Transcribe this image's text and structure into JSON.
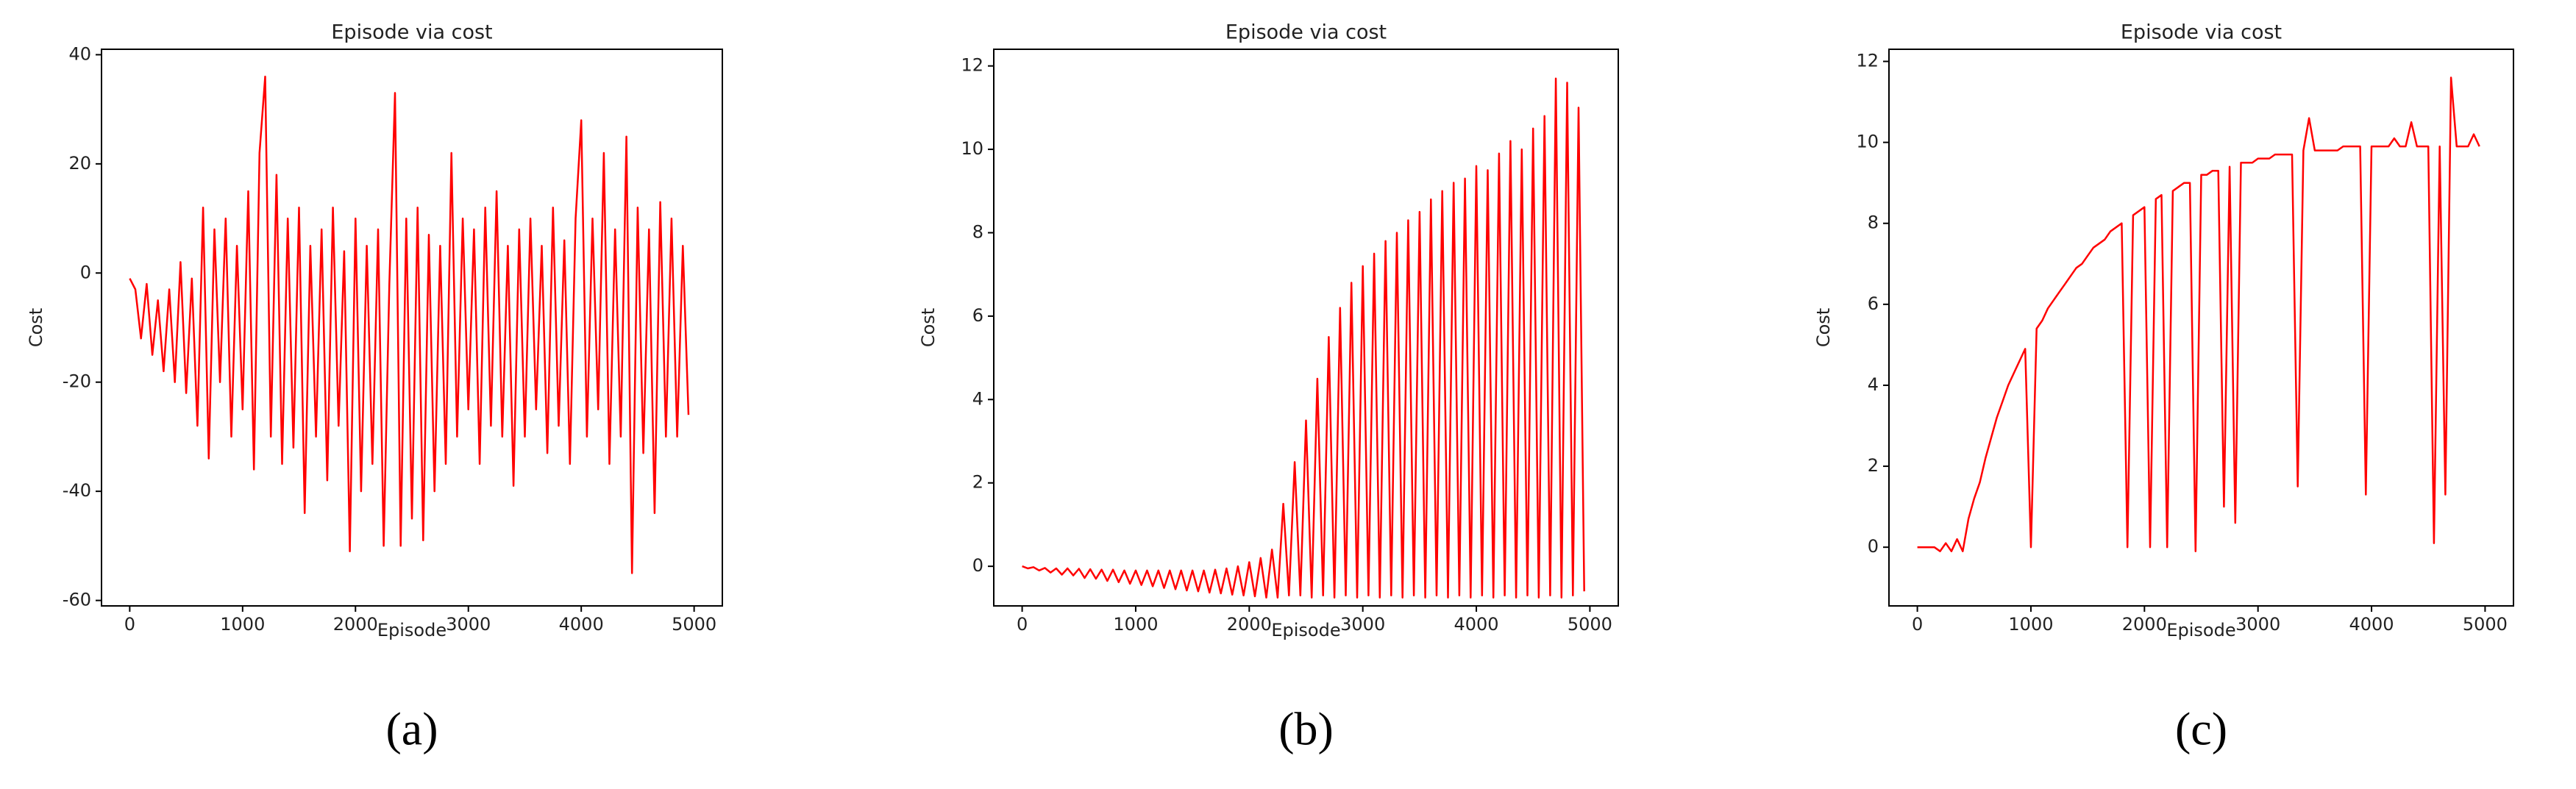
{
  "chart_data": [
    {
      "type": "line",
      "title": "Episode via cost",
      "xlabel": "Episode",
      "ylabel": "Cost",
      "panel_label": "(a)",
      "color": "#ff0000",
      "xlim": [
        -250,
        5250
      ],
      "ylim": [
        -61,
        41
      ],
      "xticks": [
        0,
        1000,
        2000,
        3000,
        4000,
        5000
      ],
      "yticks": [
        -60,
        -40,
        -20,
        0,
        20,
        40
      ],
      "x": [
        0,
        50,
        100,
        150,
        200,
        250,
        300,
        350,
        400,
        450,
        500,
        550,
        600,
        650,
        700,
        750,
        800,
        850,
        900,
        950,
        1000,
        1050,
        1100,
        1150,
        1200,
        1250,
        1300,
        1350,
        1400,
        1450,
        1500,
        1550,
        1600,
        1650,
        1700,
        1750,
        1800,
        1850,
        1900,
        1950,
        2000,
        2050,
        2100,
        2150,
        2200,
        2250,
        2300,
        2350,
        2400,
        2450,
        2500,
        2550,
        2600,
        2650,
        2700,
        2750,
        2800,
        2850,
        2900,
        2950,
        3000,
        3050,
        3100,
        3150,
        3200,
        3250,
        3300,
        3350,
        3400,
        3450,
        3500,
        3550,
        3600,
        3650,
        3700,
        3750,
        3800,
        3850,
        3900,
        3950,
        4000,
        4050,
        4100,
        4150,
        4200,
        4250,
        4300,
        4350,
        4400,
        4450,
        4500,
        4550,
        4600,
        4650,
        4700,
        4750,
        4800,
        4850,
        4900,
        4950
      ],
      "values": [
        -1,
        -3,
        -12,
        -2,
        -15,
        -5,
        -18,
        -3,
        -20,
        2,
        -22,
        -1,
        -28,
        12,
        -34,
        8,
        -20,
        10,
        -30,
        5,
        -25,
        15,
        -36,
        22,
        36,
        -30,
        18,
        -35,
        10,
        -32,
        12,
        -44,
        5,
        -30,
        8,
        -38,
        12,
        -28,
        4,
        -51,
        10,
        -40,
        5,
        -35,
        8,
        -50,
        -2,
        33,
        -50,
        10,
        -45,
        12,
        -49,
        7,
        -40,
        5,
        -35,
        22,
        -30,
        10,
        -25,
        8,
        -35,
        12,
        -28,
        15,
        -30,
        5,
        -39,
        8,
        -30,
        10,
        -25,
        5,
        -33,
        12,
        -28,
        6,
        -35,
        10,
        28,
        -30,
        10,
        -25,
        22,
        -35,
        8,
        -30,
        25,
        -55,
        12,
        -33,
        8,
        -44,
        13,
        -30,
        10,
        -30,
        5,
        -26
      ]
    },
    {
      "type": "line",
      "title": "Episode via cost",
      "xlabel": "Episode",
      "ylabel": "Cost",
      "panel_label": "(b)",
      "color": "#ff0000",
      "xlim": [
        -250,
        5250
      ],
      "ylim": [
        -0.95,
        12.4
      ],
      "xticks": [
        0,
        1000,
        2000,
        3000,
        4000,
        5000
      ],
      "yticks": [
        0,
        2,
        4,
        6,
        8,
        10,
        12
      ],
      "x": [
        0,
        50,
        100,
        150,
        200,
        250,
        300,
        350,
        400,
        450,
        500,
        550,
        600,
        650,
        700,
        750,
        800,
        850,
        900,
        950,
        1000,
        1050,
        1100,
        1150,
        1200,
        1250,
        1300,
        1350,
        1400,
        1450,
        1500,
        1550,
        1600,
        1650,
        1700,
        1750,
        1800,
        1850,
        1900,
        1950,
        2000,
        2050,
        2100,
        2150,
        2200,
        2250,
        2300,
        2350,
        2400,
        2450,
        2500,
        2550,
        2600,
        2650,
        2700,
        2750,
        2800,
        2850,
        2900,
        2950,
        3000,
        3050,
        3100,
        3150,
        3200,
        3250,
        3300,
        3350,
        3400,
        3450,
        3500,
        3550,
        3600,
        3650,
        3700,
        3750,
        3800,
        3850,
        3900,
        3950,
        4000,
        4050,
        4100,
        4150,
        4200,
        4250,
        4300,
        4350,
        4400,
        4450,
        4500,
        4550,
        4600,
        4650,
        4700,
        4750,
        4800,
        4850,
        4900,
        4950
      ],
      "values": [
        0,
        -0.05,
        -0.02,
        -0.1,
        -0.04,
        -0.15,
        -0.05,
        -0.2,
        -0.05,
        -0.22,
        -0.06,
        -0.28,
        -0.07,
        -0.3,
        -0.08,
        -0.35,
        -0.08,
        -0.38,
        -0.1,
        -0.42,
        -0.1,
        -0.45,
        -0.1,
        -0.48,
        -0.1,
        -0.52,
        -0.1,
        -0.55,
        -0.1,
        -0.58,
        -0.1,
        -0.6,
        -0.1,
        -0.63,
        -0.08,
        -0.65,
        -0.05,
        -0.68,
        0,
        -0.7,
        0.1,
        -0.72,
        0.2,
        -0.75,
        0.4,
        -0.75,
        1.5,
        -0.7,
        2.5,
        -0.7,
        3.5,
        -0.75,
        4.5,
        -0.7,
        5.5,
        -0.75,
        6.2,
        -0.7,
        6.8,
        -0.75,
        7.2,
        -0.7,
        7.5,
        -0.75,
        7.8,
        -0.7,
        8.0,
        -0.75,
        8.3,
        -0.7,
        8.5,
        -0.75,
        8.8,
        -0.7,
        9.0,
        -0.75,
        9.2,
        -0.7,
        9.3,
        -0.75,
        9.6,
        -0.7,
        9.5,
        -0.75,
        9.9,
        -0.7,
        10.2,
        -0.75,
        10.0,
        -0.7,
        10.5,
        -0.75,
        10.8,
        -0.7,
        11.7,
        -0.75,
        11.6,
        -0.7,
        11.0,
        -0.6
      ]
    },
    {
      "type": "line",
      "title": "Episode via cost",
      "xlabel": "Episode",
      "ylabel": "Cost",
      "panel_label": "(c)",
      "color": "#ff0000",
      "xlim": [
        -250,
        5250
      ],
      "ylim": [
        -1.45,
        12.3
      ],
      "xticks": [
        0,
        1000,
        2000,
        3000,
        4000,
        5000
      ],
      "yticks": [
        0,
        2,
        4,
        6,
        8,
        10,
        12
      ],
      "x": [
        0,
        50,
        100,
        150,
        200,
        250,
        300,
        350,
        400,
        450,
        500,
        550,
        600,
        650,
        700,
        750,
        800,
        850,
        900,
        950,
        1000,
        1050,
        1100,
        1150,
        1200,
        1250,
        1300,
        1350,
        1400,
        1450,
        1500,
        1550,
        1600,
        1650,
        1700,
        1750,
        1800,
        1850,
        1900,
        1950,
        2000,
        2050,
        2100,
        2150,
        2200,
        2250,
        2300,
        2350,
        2400,
        2450,
        2500,
        2550,
        2600,
        2650,
        2700,
        2750,
        2800,
        2850,
        2900,
        2950,
        3000,
        3050,
        3100,
        3150,
        3200,
        3250,
        3300,
        3350,
        3400,
        3450,
        3500,
        3550,
        3600,
        3650,
        3700,
        3750,
        3800,
        3850,
        3900,
        3950,
        4000,
        4050,
        4100,
        4150,
        4200,
        4250,
        4300,
        4350,
        4400,
        4450,
        4500,
        4550,
        4600,
        4650,
        4700,
        4750,
        4800,
        4850,
        4900,
        4950
      ],
      "values": [
        0,
        0,
        0,
        0,
        -0.1,
        0.1,
        -0.1,
        0.2,
        -0.1,
        0.7,
        1.2,
        1.6,
        2.2,
        2.7,
        3.2,
        3.6,
        4.0,
        4.3,
        4.6,
        4.9,
        0,
        5.4,
        5.6,
        5.9,
        6.1,
        6.3,
        6.5,
        6.7,
        6.9,
        7.0,
        7.2,
        7.4,
        7.5,
        7.6,
        7.8,
        7.9,
        8.0,
        0,
        8.2,
        8.3,
        8.4,
        0,
        8.6,
        8.7,
        0,
        8.8,
        8.9,
        9.0,
        9.0,
        -0.1,
        9.2,
        9.2,
        9.3,
        9.3,
        1,
        9.4,
        0.6,
        9.5,
        9.5,
        9.5,
        9.6,
        9.6,
        9.6,
        9.7,
        9.7,
        9.7,
        9.7,
        1.5,
        9.8,
        10.6,
        9.8,
        9.8,
        9.8,
        9.8,
        9.8,
        9.9,
        9.9,
        9.9,
        9.9,
        1.3,
        9.9,
        9.9,
        9.9,
        9.9,
        10.1,
        9.9,
        9.9,
        10.5,
        9.9,
        9.9,
        9.9,
        0.1,
        9.9,
        1.3,
        11.6,
        9.9,
        9.9,
        9.9,
        10.2,
        9.9
      ]
    }
  ]
}
